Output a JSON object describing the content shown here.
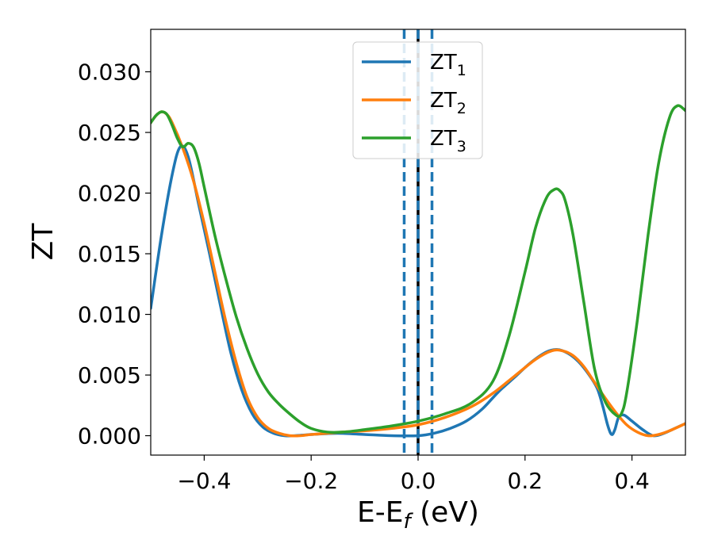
{
  "chart_data": {
    "type": "line",
    "xlabel": {
      "main": "E-E",
      "sub": "f",
      "tail": " (eV)"
    },
    "ylabel": "ZT",
    "xlim": [
      -0.5,
      0.5
    ],
    "ylim": [
      -0.0016,
      0.0335
    ],
    "xticks": [
      -0.4,
      -0.2,
      0.0,
      0.2,
      0.4
    ],
    "xtick_labels": [
      "−0.4",
      "−0.2",
      "0.0",
      "0.2",
      "0.4"
    ],
    "yticks": [
      0.0,
      0.005,
      0.01,
      0.015,
      0.02,
      0.025,
      0.03
    ],
    "ytick_labels": [
      "0.000",
      "0.005",
      "0.010",
      "0.015",
      "0.020",
      "0.025",
      "0.030"
    ],
    "grid": false,
    "legend": {
      "position": "top-center"
    },
    "series": [
      {
        "name": "ZT",
        "sub": "1",
        "color": "#1f77b4",
        "x": [
          -0.5,
          -0.48,
          -0.46,
          -0.445,
          -0.43,
          -0.41,
          -0.39,
          -0.37,
          -0.35,
          -0.33,
          -0.31,
          -0.29,
          -0.27,
          -0.25,
          -0.23,
          -0.2,
          -0.15,
          -0.1,
          -0.05,
          0.0,
          0.03,
          0.06,
          0.09,
          0.12,
          0.15,
          0.18,
          0.21,
          0.24,
          0.26,
          0.28,
          0.3,
          0.32,
          0.335,
          0.345,
          0.355,
          0.362,
          0.368,
          0.375,
          0.385,
          0.4,
          0.42,
          0.44,
          0.46,
          0.48,
          0.5
        ],
        "y": [
          0.0105,
          0.0165,
          0.0215,
          0.0238,
          0.023,
          0.019,
          0.015,
          0.0108,
          0.0068,
          0.0038,
          0.0018,
          0.0007,
          0.0002,
          0.0,
          0.0,
          0.0001,
          0.0002,
          0.0001,
          0.0,
          0.0,
          0.0002,
          0.0006,
          0.0012,
          0.0022,
          0.0036,
          0.0048,
          0.006,
          0.0069,
          0.0071,
          0.0068,
          0.0061,
          0.005,
          0.0039,
          0.0025,
          0.0008,
          0.0001,
          0.0005,
          0.0015,
          0.0017,
          0.0012,
          0.0005,
          0.0,
          0.0002,
          0.0006,
          0.001
        ]
      },
      {
        "name": "ZT",
        "sub": "2",
        "color": "#ff7f0e",
        "x": [
          -0.5,
          -0.49,
          -0.48,
          -0.47,
          -0.46,
          -0.44,
          -0.42,
          -0.4,
          -0.38,
          -0.36,
          -0.34,
          -0.32,
          -0.3,
          -0.28,
          -0.26,
          -0.24,
          -0.22,
          -0.2,
          -0.17,
          -0.14,
          -0.1,
          -0.05,
          0.0,
          0.05,
          0.1,
          0.14,
          0.18,
          0.22,
          0.25,
          0.27,
          0.29,
          0.31,
          0.33,
          0.35,
          0.37,
          0.39,
          0.41,
          0.43,
          0.45,
          0.47,
          0.5
        ],
        "y": [
          0.0258,
          0.0264,
          0.0267,
          0.0265,
          0.0258,
          0.0237,
          0.021,
          0.0175,
          0.0135,
          0.0095,
          0.006,
          0.0032,
          0.0015,
          0.0006,
          0.0002,
          0.0,
          0.0,
          0.0001,
          0.0002,
          0.0003,
          0.0004,
          0.0006,
          0.0009,
          0.0015,
          0.0024,
          0.0035,
          0.0049,
          0.0063,
          0.007,
          0.007,
          0.0066,
          0.0057,
          0.0044,
          0.0031,
          0.0019,
          0.0009,
          0.0003,
          0.0,
          0.0001,
          0.0004,
          0.001
        ]
      },
      {
        "name": "ZT",
        "sub": "3",
        "color": "#2ca02c",
        "x": [
          -0.5,
          -0.49,
          -0.48,
          -0.47,
          -0.46,
          -0.45,
          -0.44,
          -0.43,
          -0.42,
          -0.41,
          -0.4,
          -0.38,
          -0.36,
          -0.34,
          -0.32,
          -0.3,
          -0.28,
          -0.26,
          -0.24,
          -0.22,
          -0.2,
          -0.17,
          -0.14,
          -0.1,
          -0.05,
          0.0,
          0.05,
          0.1,
          0.14,
          0.17,
          0.2,
          0.22,
          0.24,
          0.255,
          0.265,
          0.275,
          0.29,
          0.31,
          0.33,
          0.35,
          0.37,
          0.38,
          0.39,
          0.41,
          0.43,
          0.45,
          0.47,
          0.485,
          0.5
        ],
        "y": [
          0.0258,
          0.0264,
          0.0267,
          0.0265,
          0.0256,
          0.0245,
          0.0238,
          0.0241,
          0.0238,
          0.0225,
          0.0205,
          0.0165,
          0.013,
          0.0098,
          0.0072,
          0.0051,
          0.0036,
          0.0026,
          0.0018,
          0.0011,
          0.0006,
          0.0003,
          0.0003,
          0.0005,
          0.0008,
          0.0012,
          0.0018,
          0.0027,
          0.0045,
          0.0082,
          0.0135,
          0.0172,
          0.0196,
          0.0203,
          0.0202,
          0.0194,
          0.0165,
          0.011,
          0.0055,
          0.0028,
          0.0017,
          0.0018,
          0.0035,
          0.0095,
          0.0165,
          0.0225,
          0.0262,
          0.0272,
          0.0268
        ]
      }
    ],
    "vlines": [
      {
        "x": 0.0,
        "color": "#000000",
        "style": "solid"
      },
      {
        "x": -0.026,
        "color": "#1f77b4",
        "style": "dashed"
      },
      {
        "x": 0.0,
        "color": "#1f77b4",
        "style": "dashed"
      },
      {
        "x": 0.026,
        "color": "#1f77b4",
        "style": "dashed"
      }
    ]
  }
}
